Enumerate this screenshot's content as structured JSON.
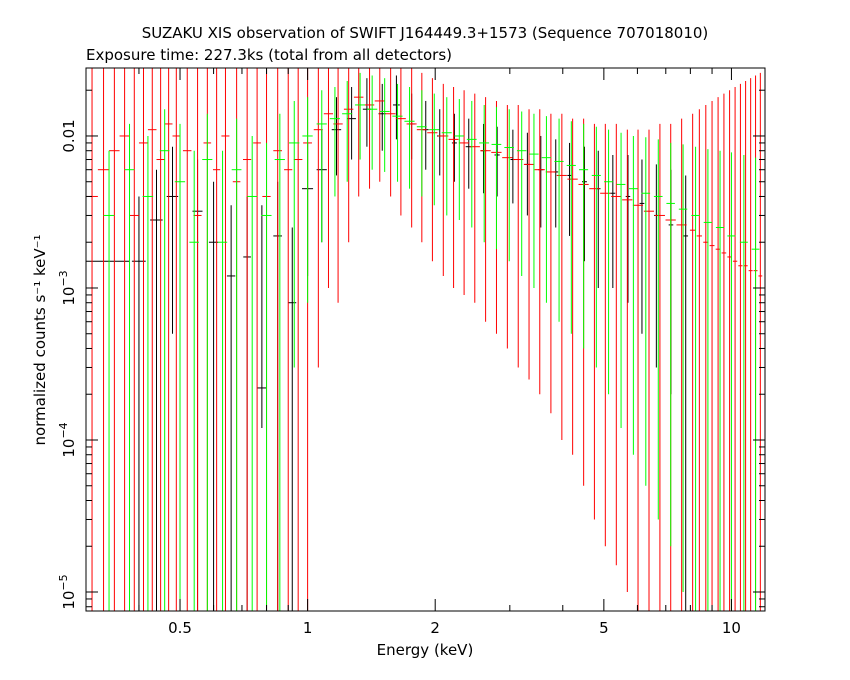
{
  "chart_data": {
    "type": "scatter",
    "title": "SUZAKU XIS observation of SWIFT J164449.3+1573 (Sequence 707018010)",
    "subtitle": "Exposure time: 227.3ks (total from all detectors)",
    "xlabel": "Energy (keV)",
    "ylabel": "normalized counts s⁻¹ keV⁻¹",
    "x_scale": "log",
    "y_scale": "log",
    "xlim": [
      0.3,
      12.0
    ],
    "ylim": [
      7.5e-06,
      0.028
    ],
    "x_ticks": [
      {
        "value": 0.5,
        "label": "0.5"
      },
      {
        "value": 1,
        "label": "1"
      },
      {
        "value": 2,
        "label": "2"
      },
      {
        "value": 5,
        "label": "5"
      },
      {
        "value": 10,
        "label": "10"
      }
    ],
    "y_ticks": [
      {
        "value": 0.01,
        "label": "0.01"
      },
      {
        "value": 0.001,
        "label": "10",
        "exp": "−3"
      },
      {
        "value": 0.0001,
        "label": "10",
        "exp": "−4"
      },
      {
        "value": 1e-05,
        "label": "10",
        "exp": "−5"
      }
    ],
    "grid": false,
    "legend": "none",
    "colors": {
      "black": "#000000",
      "red": "#ff0000",
      "green": "#00ff00",
      "darkred": "#b00000"
    },
    "series": [
      {
        "color": "#000000",
        "x": [
          0.3,
          0.4,
          0.44,
          0.48,
          0.55,
          0.6,
          0.66,
          0.72,
          0.78,
          0.85,
          0.92,
          1.0,
          1.08,
          1.17,
          1.27,
          1.38,
          1.5,
          1.62,
          1.76,
          1.9,
          2.05,
          2.22,
          2.4,
          2.6,
          2.8,
          3.05,
          3.3,
          3.55,
          3.85,
          4.15,
          4.5,
          4.85,
          5.25,
          5.7,
          6.15,
          6.65,
          7.2,
          7.8
        ],
        "y": [
          0.0015,
          0.0015,
          0.0028,
          0.004,
          0.0032,
          0.002,
          0.0012,
          0.0016,
          0.00022,
          0.0022,
          0.0008,
          0.0045,
          0.006,
          0.011,
          0.013,
          0.015,
          0.014,
          0.016,
          0.012,
          0.011,
          0.01,
          0.009,
          0.0085,
          0.008,
          0.0075,
          0.007,
          0.0065,
          0.006,
          0.0058,
          0.0055,
          0.005,
          0.0045,
          0.0042,
          0.004,
          0.0036,
          0.003,
          0.0026,
          0.0022
        ],
        "dx": [
          0.08,
          0.015,
          0.015,
          0.015,
          0.015,
          0.015,
          0.015,
          0.015,
          0.02,
          0.02,
          0.02,
          0.03,
          0.03,
          0.03,
          0.03,
          0.03,
          0.03,
          0.03,
          0.03,
          0.03,
          0.03,
          0.03,
          0.04,
          0.04,
          0.04,
          0.04,
          0.05,
          0.05,
          0.05,
          0.05,
          0.06,
          0.06,
          0.07,
          0.07,
          0.08,
          0.08,
          0.09,
          0.1
        ],
        "ylo": [
          7.5e-06,
          7.5e-06,
          7.5e-06,
          0.0005,
          7.5e-06,
          7.5e-06,
          7.5e-06,
          7.5e-06,
          0.00012,
          7.5e-06,
          7.5e-06,
          0.0012,
          0.002,
          0.0055,
          0.007,
          0.0085,
          0.008,
          0.0095,
          0.007,
          0.006,
          0.0055,
          0.005,
          0.0045,
          0.0042,
          0.004,
          0.0036,
          0.003,
          0.0025,
          0.0025,
          0.0022,
          0.0015,
          0.001,
          0.001,
          0.0008,
          0.0005,
          0.0003,
          0.0002,
          7.5e-06
        ],
        "yhi": [
          0.003,
          0.004,
          0.006,
          0.0085,
          0.007,
          0.005,
          0.0035,
          0.004,
          0.0035,
          0.005,
          0.0025,
          0.009,
          0.011,
          0.018,
          0.021,
          0.024,
          0.022,
          0.025,
          0.019,
          0.017,
          0.015,
          0.014,
          0.013,
          0.012,
          0.0115,
          0.011,
          0.0105,
          0.01,
          0.0095,
          0.009,
          0.0085,
          0.008,
          0.0075,
          0.0075,
          0.007,
          0.0065,
          0.006,
          0.0055
        ]
      },
      {
        "color": "#ff0000",
        "x": [
          0.31,
          0.33,
          0.35,
          0.37,
          0.39,
          0.41,
          0.43,
          0.45,
          0.47,
          0.49,
          0.52,
          0.55,
          0.58,
          0.61,
          0.64,
          0.68,
          0.72,
          0.76,
          0.8,
          0.85,
          0.9,
          0.95,
          1.0,
          1.06,
          1.12,
          1.18,
          1.25,
          1.32,
          1.4,
          1.48,
          1.57,
          1.66,
          1.76,
          1.86,
          1.97,
          2.09,
          2.21,
          2.34,
          2.48,
          2.63,
          2.79,
          2.96,
          3.14,
          3.33,
          3.53,
          3.75,
          3.98,
          4.22,
          4.48,
          4.75,
          5.04,
          5.35,
          5.68,
          6.02,
          6.39,
          6.78,
          7.19,
          7.63,
          8.1,
          8.4,
          8.7,
          9.0,
          9.3,
          9.6,
          9.9,
          10.2,
          10.5,
          10.8,
          11.1,
          11.4,
          11.7
        ],
        "y": [
          0.004,
          0.006,
          0.008,
          0.01,
          0.003,
          0.009,
          0.011,
          0.007,
          0.012,
          0.01,
          0.008,
          0.003,
          0.009,
          0.006,
          0.01,
          0.005,
          0.007,
          0.009,
          0.004,
          0.008,
          0.006,
          0.007,
          0.009,
          0.011,
          0.014,
          0.012,
          0.015,
          0.018,
          0.016,
          0.017,
          0.014,
          0.013,
          0.012,
          0.011,
          0.0105,
          0.01,
          0.0095,
          0.009,
          0.0085,
          0.008,
          0.0078,
          0.0072,
          0.007,
          0.0065,
          0.006,
          0.0058,
          0.0055,
          0.0052,
          0.0048,
          0.0045,
          0.0042,
          0.004,
          0.0038,
          0.0035,
          0.0032,
          0.003,
          0.0028,
          0.0026,
          0.0024,
          0.0022,
          0.002,
          0.0019,
          0.0018,
          0.0017,
          0.0016,
          0.0015,
          0.0014,
          0.0014,
          0.0013,
          0.0013,
          0.0012
        ],
        "dx": [
          0.01,
          0.01,
          0.01,
          0.01,
          0.01,
          0.01,
          0.01,
          0.01,
          0.01,
          0.01,
          0.012,
          0.012,
          0.012,
          0.012,
          0.014,
          0.014,
          0.016,
          0.016,
          0.018,
          0.02,
          0.02,
          0.022,
          0.024,
          0.026,
          0.028,
          0.03,
          0.032,
          0.034,
          0.036,
          0.04,
          0.042,
          0.045,
          0.048,
          0.05,
          0.055,
          0.058,
          0.06,
          0.065,
          0.07,
          0.074,
          0.078,
          0.082,
          0.088,
          0.092,
          0.098,
          0.104,
          0.11,
          0.118,
          0.124,
          0.132,
          0.14,
          0.148,
          0.158,
          0.166,
          0.176,
          0.188,
          0.2,
          0.21,
          0.12,
          0.12,
          0.12,
          0.12,
          0.12,
          0.12,
          0.12,
          0.12,
          0.12,
          0.12,
          0.12,
          0.12,
          0.12
        ],
        "ylo": [
          7.5e-06,
          7.5e-06,
          7.5e-06,
          7.5e-06,
          7.5e-06,
          7.5e-06,
          7.5e-06,
          7.5e-06,
          7.5e-06,
          7.5e-06,
          7.5e-06,
          7.5e-06,
          7.5e-06,
          7.5e-06,
          7.5e-06,
          7.5e-06,
          7.5e-06,
          7.5e-06,
          7.5e-06,
          7.5e-06,
          7.5e-06,
          7.5e-06,
          7.5e-06,
          0.0003,
          0.001,
          0.0008,
          0.002,
          0.004,
          0.0045,
          0.005,
          0.004,
          0.003,
          0.0025,
          0.002,
          0.0015,
          0.0012,
          0.001,
          0.0009,
          0.0008,
          0.0006,
          0.0005,
          0.0004,
          0.0003,
          0.00025,
          0.0002,
          0.00015,
          0.0001,
          8e-05,
          5e-05,
          3e-05,
          2e-05,
          1.5e-05,
          1e-05,
          7.5e-06,
          7.5e-06,
          7.5e-06,
          7.5e-06,
          7.5e-06,
          7.5e-06,
          7.5e-06,
          7.5e-06,
          7.5e-06,
          7.5e-06,
          7.5e-06,
          7.5e-06,
          7.5e-06,
          7.5e-06,
          7.5e-06,
          7.5e-06,
          7.5e-06,
          7.5e-06
        ],
        "yhi": [
          0.028,
          0.028,
          0.028,
          0.028,
          0.028,
          0.028,
          0.028,
          0.028,
          0.028,
          0.028,
          0.028,
          0.028,
          0.028,
          0.028,
          0.028,
          0.028,
          0.028,
          0.028,
          0.028,
          0.028,
          0.028,
          0.028,
          0.028,
          0.028,
          0.028,
          0.028,
          0.028,
          0.028,
          0.028,
          0.028,
          0.028,
          0.028,
          0.028,
          0.026,
          0.024,
          0.022,
          0.021,
          0.02,
          0.019,
          0.018,
          0.017,
          0.016,
          0.016,
          0.015,
          0.015,
          0.014,
          0.014,
          0.013,
          0.013,
          0.012,
          0.012,
          0.012,
          0.011,
          0.011,
          0.011,
          0.012,
          0.012,
          0.013,
          0.014,
          0.015,
          0.016,
          0.017,
          0.018,
          0.019,
          0.02,
          0.021,
          0.022,
          0.023,
          0.024,
          0.025,
          0.026
        ]
      },
      {
        "color": "#00ff00",
        "x": [
          0.34,
          0.38,
          0.42,
          0.46,
          0.5,
          0.54,
          0.58,
          0.63,
          0.68,
          0.74,
          0.8,
          0.86,
          0.93,
          1.0,
          1.08,
          1.16,
          1.24,
          1.33,
          1.42,
          1.52,
          1.63,
          1.74,
          1.86,
          1.99,
          2.13,
          2.28,
          2.44,
          2.61,
          2.79,
          2.99,
          3.2,
          3.42,
          3.66,
          3.92,
          4.19,
          4.48,
          4.8,
          5.13,
          5.49,
          5.87,
          6.28,
          6.72,
          7.19,
          7.69,
          8.23,
          8.8,
          9.4,
          10.0,
          10.7,
          11.4
        ],
        "y": [
          0.003,
          0.006,
          0.004,
          0.008,
          0.005,
          0.002,
          0.007,
          0.002,
          0.006,
          0.004,
          0.003,
          0.007,
          0.009,
          0.01,
          0.012,
          0.013,
          0.014,
          0.016,
          0.015,
          0.0145,
          0.0135,
          0.0125,
          0.0115,
          0.011,
          0.0105,
          0.01,
          0.0095,
          0.009,
          0.0088,
          0.0084,
          0.008,
          0.0076,
          0.0072,
          0.0068,
          0.0064,
          0.006,
          0.0055,
          0.005,
          0.0048,
          0.0045,
          0.0042,
          0.004,
          0.0036,
          0.0033,
          0.003,
          0.0027,
          0.0025,
          0.0022,
          0.002,
          0.0018
        ],
        "dx": [
          0.01,
          0.01,
          0.012,
          0.012,
          0.014,
          0.014,
          0.016,
          0.016,
          0.018,
          0.02,
          0.022,
          0.024,
          0.026,
          0.028,
          0.03,
          0.032,
          0.034,
          0.036,
          0.04,
          0.042,
          0.045,
          0.048,
          0.05,
          0.055,
          0.058,
          0.06,
          0.065,
          0.07,
          0.074,
          0.078,
          0.082,
          0.088,
          0.092,
          0.098,
          0.104,
          0.11,
          0.118,
          0.124,
          0.132,
          0.14,
          0.148,
          0.158,
          0.166,
          0.176,
          0.188,
          0.2,
          0.21,
          0.22,
          0.23,
          0.24
        ],
        "ylo": [
          7.5e-06,
          7.5e-06,
          7.5e-06,
          7.5e-06,
          7.5e-06,
          7.5e-06,
          7.5e-06,
          7.5e-06,
          7.5e-06,
          7.5e-06,
          7.5e-06,
          7.5e-06,
          0.0003,
          0.0008,
          0.002,
          0.004,
          0.005,
          0.007,
          0.006,
          0.0058,
          0.005,
          0.0045,
          0.004,
          0.0035,
          0.003,
          0.0028,
          0.0025,
          0.002,
          0.0018,
          0.0015,
          0.0012,
          0.001,
          0.0008,
          0.0006,
          0.0005,
          0.0004,
          0.0003,
          0.0002,
          0.00012,
          8e-05,
          5e-05,
          3e-05,
          2e-05,
          1e-05,
          7.5e-06,
          7.5e-06,
          7.5e-06,
          7.5e-06,
          7.5e-06,
          7.5e-06
        ],
        "yhi": [
          0.008,
          0.012,
          0.01,
          0.015,
          0.012,
          0.008,
          0.014,
          0.008,
          0.013,
          0.01,
          0.009,
          0.014,
          0.017,
          0.018,
          0.02,
          0.021,
          0.023,
          0.026,
          0.025,
          0.024,
          0.022,
          0.021,
          0.02,
          0.019,
          0.018,
          0.0175,
          0.017,
          0.016,
          0.0155,
          0.015,
          0.0145,
          0.014,
          0.0135,
          0.013,
          0.0125,
          0.012,
          0.0115,
          0.011,
          0.0105,
          0.01,
          0.0098,
          0.0095,
          0.009,
          0.0088,
          0.0085,
          0.0082,
          0.008,
          0.0078,
          0.0075,
          0.0072
        ]
      }
    ]
  }
}
